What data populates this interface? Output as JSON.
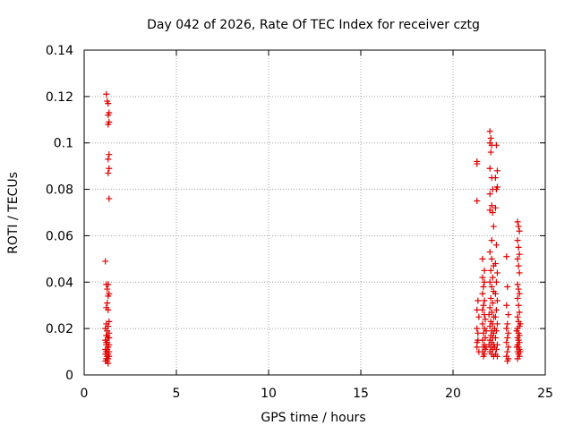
{
  "chart_data": {
    "type": "scatter",
    "title": "Day 042 of 2026, Rate Of TEC Index for receiver cztg",
    "xlabel": "GPS time / hours",
    "ylabel": "ROTI / TECUs",
    "xlim": [
      0,
      25
    ],
    "ylim": [
      0,
      0.14
    ],
    "xticks": [
      0,
      5,
      10,
      15,
      20,
      25
    ],
    "xtick_labels": [
      "0",
      "5",
      "10",
      "15",
      "20",
      "25"
    ],
    "yticks": [
      0,
      0.02,
      0.04,
      0.06,
      0.08,
      0.1,
      0.12,
      0.14
    ],
    "ytick_labels": [
      "0",
      "0.02",
      "0.04",
      "0.06",
      "0.08",
      "0.1",
      "0.12",
      "0.14"
    ],
    "grid": true,
    "marker": "+",
    "marker_color": "#e00000",
    "series": [
      {
        "name": "ROTI",
        "points": [
          [
            1.2,
            0.121
          ],
          [
            1.25,
            0.118
          ],
          [
            1.3,
            0.117
          ],
          [
            1.35,
            0.113
          ],
          [
            1.3,
            0.112
          ],
          [
            1.35,
            0.109
          ],
          [
            1.3,
            0.108
          ],
          [
            1.35,
            0.095
          ],
          [
            1.3,
            0.093
          ],
          [
            1.35,
            0.089
          ],
          [
            1.3,
            0.087
          ],
          [
            1.35,
            0.076
          ],
          [
            1.15,
            0.049
          ],
          [
            1.2,
            0.039
          ],
          [
            1.3,
            0.039
          ],
          [
            1.25,
            0.037
          ],
          [
            1.35,
            0.035
          ],
          [
            1.3,
            0.034
          ],
          [
            1.25,
            0.031
          ],
          [
            1.2,
            0.029
          ],
          [
            1.3,
            0.028
          ],
          [
            1.35,
            0.023
          ],
          [
            1.2,
            0.022
          ],
          [
            1.3,
            0.021
          ],
          [
            1.15,
            0.02
          ],
          [
            1.25,
            0.019
          ],
          [
            1.35,
            0.018
          ],
          [
            1.2,
            0.017
          ],
          [
            1.3,
            0.016
          ],
          [
            1.15,
            0.015
          ],
          [
            1.25,
            0.014
          ],
          [
            1.35,
            0.013
          ],
          [
            1.2,
            0.013
          ],
          [
            1.3,
            0.012
          ],
          [
            1.15,
            0.011
          ],
          [
            1.25,
            0.011
          ],
          [
            1.35,
            0.01
          ],
          [
            1.2,
            0.01
          ],
          [
            1.3,
            0.009
          ],
          [
            1.15,
            0.009
          ],
          [
            1.25,
            0.008
          ],
          [
            1.35,
            0.008
          ],
          [
            1.2,
            0.007
          ],
          [
            1.3,
            0.007
          ],
          [
            1.25,
            0.006
          ],
          [
            1.15,
            0.006
          ],
          [
            1.3,
            0.005
          ],
          [
            1.2,
            0.014
          ],
          [
            1.35,
            0.016
          ],
          [
            1.25,
            0.017
          ],
          [
            21.3,
            0.092
          ],
          [
            21.3,
            0.091
          ],
          [
            21.3,
            0.075
          ],
          [
            21.35,
            0.032
          ],
          [
            21.3,
            0.028
          ],
          [
            21.4,
            0.025
          ],
          [
            21.3,
            0.02
          ],
          [
            21.35,
            0.015
          ],
          [
            21.3,
            0.012
          ],
          [
            21.4,
            0.01
          ],
          [
            21.35,
            0.018
          ],
          [
            21.3,
            0.014
          ],
          [
            21.6,
            0.05
          ],
          [
            21.7,
            0.045
          ],
          [
            21.6,
            0.042
          ],
          [
            21.7,
            0.04
          ],
          [
            21.65,
            0.038
          ],
          [
            21.6,
            0.035
          ],
          [
            21.7,
            0.032
          ],
          [
            21.65,
            0.03
          ],
          [
            21.6,
            0.028
          ],
          [
            21.7,
            0.026
          ],
          [
            21.75,
            0.024
          ],
          [
            21.6,
            0.022
          ],
          [
            21.7,
            0.02
          ],
          [
            21.65,
            0.018
          ],
          [
            21.75,
            0.016
          ],
          [
            21.6,
            0.015
          ],
          [
            21.7,
            0.013
          ],
          [
            21.65,
            0.012
          ],
          [
            21.75,
            0.011
          ],
          [
            21.6,
            0.01
          ],
          [
            21.7,
            0.009
          ],
          [
            21.65,
            0.008
          ],
          [
            21.8,
            0.019
          ],
          [
            21.8,
            0.012
          ],
          [
            22.0,
            0.105
          ],
          [
            22.05,
            0.102
          ],
          [
            22.0,
            0.1
          ],
          [
            22.1,
            0.099
          ],
          [
            22.05,
            0.096
          ],
          [
            22.0,
            0.089
          ],
          [
            22.1,
            0.085
          ],
          [
            22.15,
            0.08
          ],
          [
            22.0,
            0.078
          ],
          [
            22.1,
            0.073
          ],
          [
            22.0,
            0.071
          ],
          [
            22.15,
            0.07
          ],
          [
            22.2,
            0.064
          ],
          [
            22.1,
            0.058
          ],
          [
            22.0,
            0.053
          ],
          [
            22.1,
            0.05
          ],
          [
            22.2,
            0.047
          ],
          [
            22.05,
            0.045
          ],
          [
            22.15,
            0.042
          ],
          [
            22.0,
            0.04
          ],
          [
            22.1,
            0.038
          ],
          [
            22.2,
            0.036
          ],
          [
            22.05,
            0.033
          ],
          [
            22.15,
            0.031
          ],
          [
            22.0,
            0.029
          ],
          [
            22.1,
            0.027
          ],
          [
            22.2,
            0.025
          ],
          [
            22.05,
            0.023
          ],
          [
            22.15,
            0.022
          ],
          [
            22.0,
            0.021
          ],
          [
            22.1,
            0.019
          ],
          [
            22.2,
            0.018
          ],
          [
            22.05,
            0.017
          ],
          [
            22.15,
            0.016
          ],
          [
            22.0,
            0.015
          ],
          [
            22.1,
            0.014
          ],
          [
            22.2,
            0.013
          ],
          [
            22.05,
            0.012
          ],
          [
            22.15,
            0.011
          ],
          [
            22.0,
            0.01
          ],
          [
            22.1,
            0.009
          ],
          [
            22.2,
            0.008
          ],
          [
            21.95,
            0.026
          ],
          [
            21.95,
            0.013
          ],
          [
            22.25,
            0.02
          ],
          [
            22.25,
            0.012
          ],
          [
            22.35,
            0.099
          ],
          [
            22.4,
            0.088
          ],
          [
            22.3,
            0.085
          ],
          [
            22.35,
            0.08
          ],
          [
            22.4,
            0.081
          ],
          [
            22.3,
            0.072
          ],
          [
            22.35,
            0.056
          ],
          [
            22.3,
            0.048
          ],
          [
            22.4,
            0.044
          ],
          [
            22.35,
            0.04
          ],
          [
            22.3,
            0.035
          ],
          [
            22.4,
            0.032
          ],
          [
            22.35,
            0.028
          ],
          [
            22.3,
            0.025
          ],
          [
            22.4,
            0.022
          ],
          [
            22.35,
            0.019
          ],
          [
            22.3,
            0.016
          ],
          [
            22.4,
            0.013
          ],
          [
            22.35,
            0.011
          ],
          [
            22.3,
            0.009
          ],
          [
            22.4,
            0.008
          ],
          [
            22.9,
            0.051
          ],
          [
            22.95,
            0.038
          ],
          [
            22.9,
            0.03
          ],
          [
            23.0,
            0.026
          ],
          [
            22.95,
            0.022
          ],
          [
            22.9,
            0.02
          ],
          [
            23.0,
            0.018
          ],
          [
            22.95,
            0.016
          ],
          [
            22.9,
            0.014
          ],
          [
            23.0,
            0.012
          ],
          [
            22.95,
            0.01
          ],
          [
            22.9,
            0.008
          ],
          [
            23.0,
            0.007
          ],
          [
            22.95,
            0.006
          ],
          [
            23.5,
            0.066
          ],
          [
            23.55,
            0.064
          ],
          [
            23.6,
            0.062
          ],
          [
            23.5,
            0.058
          ],
          [
            23.55,
            0.055
          ],
          [
            23.6,
            0.052
          ],
          [
            23.5,
            0.05
          ],
          [
            23.55,
            0.047
          ],
          [
            23.6,
            0.044
          ],
          [
            23.5,
            0.039
          ],
          [
            23.55,
            0.037
          ],
          [
            23.6,
            0.035
          ],
          [
            23.5,
            0.033
          ],
          [
            23.55,
            0.03
          ],
          [
            23.6,
            0.027
          ],
          [
            23.5,
            0.025
          ],
          [
            23.55,
            0.023
          ],
          [
            23.6,
            0.021
          ],
          [
            23.5,
            0.02
          ],
          [
            23.55,
            0.018
          ],
          [
            23.6,
            0.017
          ],
          [
            23.5,
            0.016
          ],
          [
            23.55,
            0.015
          ],
          [
            23.6,
            0.014
          ],
          [
            23.5,
            0.013
          ],
          [
            23.55,
            0.012
          ],
          [
            23.6,
            0.011
          ],
          [
            23.5,
            0.01
          ],
          [
            23.55,
            0.009
          ],
          [
            23.6,
            0.008
          ],
          [
            23.5,
            0.007
          ],
          [
            23.45,
            0.019
          ],
          [
            23.65,
            0.022
          ],
          [
            23.45,
            0.012
          ],
          [
            23.65,
            0.01
          ]
        ]
      }
    ]
  }
}
